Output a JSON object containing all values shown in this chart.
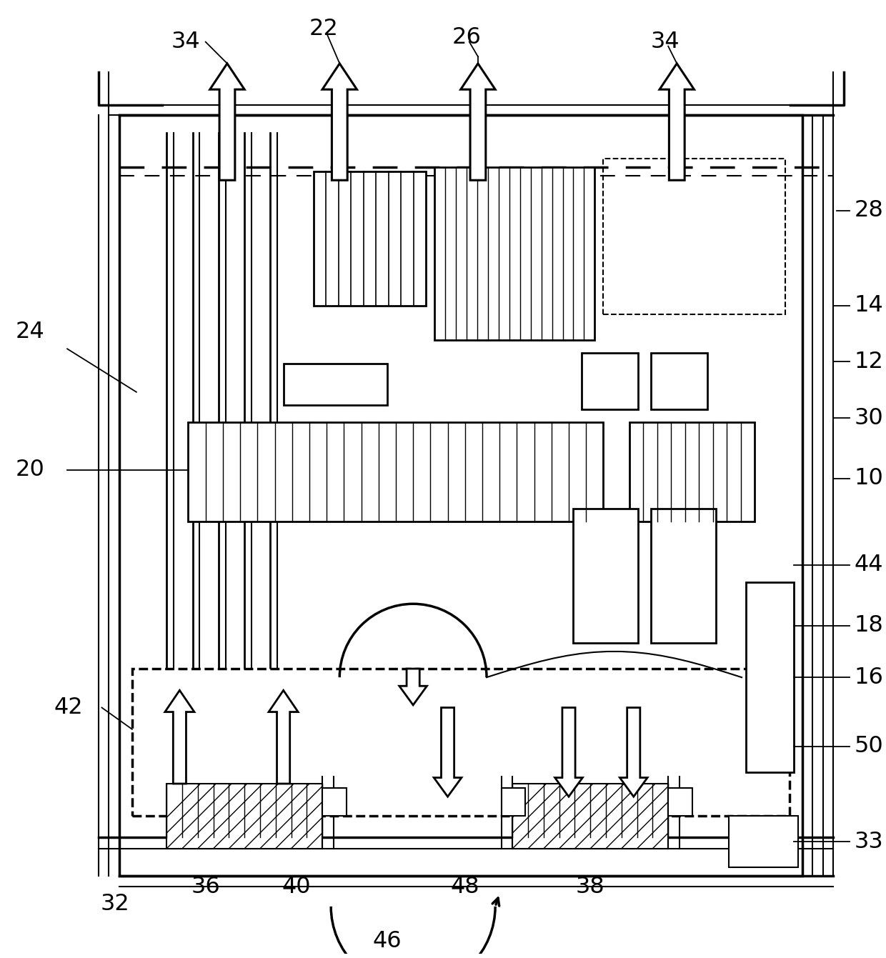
{
  "bg_color": "#ffffff",
  "line_color": "#000000",
  "fig_width": 12.4,
  "fig_height": 13.41
}
